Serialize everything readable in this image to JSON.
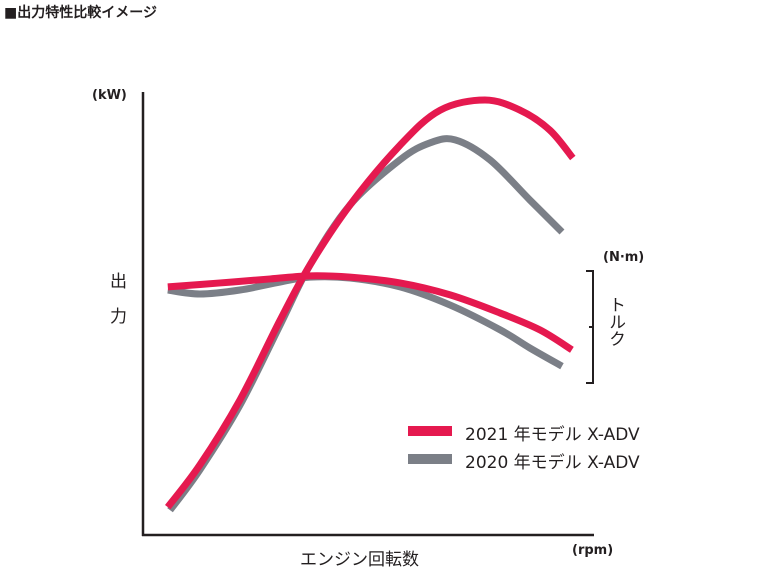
{
  "chart_data": {
    "type": "line",
    "title": "■出力特性比較イメージ",
    "xlabel": "エンジン回転数",
    "x_unit": "(rpm)",
    "ylabel_left": "出力",
    "y_unit_left": "(kW)",
    "ylabel_right": "トルク",
    "y_unit_right": "(N·m)",
    "scale_note": "no tick values printed; values are relative (0-100) positions along each axis",
    "xlim": [
      0,
      100
    ],
    "ylim": [
      0,
      100
    ],
    "grid": false,
    "legend_position": "bottom-right",
    "colors": {
      "model_2021": "#e5194f",
      "model_2020": "#7b7f87"
    },
    "series": [
      {
        "name": "2021 年モデル X-ADV",
        "quantity": "power",
        "color": "#e5194f",
        "points": [
          [
            5.5,
            6.3
          ],
          [
            12.6,
            15.8
          ],
          [
            21.5,
            30.5
          ],
          [
            30.4,
            48.5
          ],
          [
            37.0,
            60.9
          ],
          [
            45.9,
            74.5
          ],
          [
            57.0,
            88.0
          ],
          [
            65.9,
            95.9
          ],
          [
            75.8,
            98.2
          ],
          [
            83.6,
            95.9
          ],
          [
            90.2,
            91.4
          ],
          [
            95.3,
            85.1
          ]
        ]
      },
      {
        "name": "2020 年モデル X-ADV",
        "quantity": "power",
        "color": "#7b7f87",
        "points": [
          [
            6.0,
            5.6
          ],
          [
            12.6,
            14.7
          ],
          [
            21.5,
            29.3
          ],
          [
            30.4,
            47.4
          ],
          [
            37.0,
            60.9
          ],
          [
            45.9,
            74.5
          ],
          [
            57.0,
            84.7
          ],
          [
            63.6,
            88.5
          ],
          [
            69.2,
            89.2
          ],
          [
            76.9,
            84.7
          ],
          [
            85.8,
            75.6
          ],
          [
            92.9,
            68.4
          ]
        ]
      },
      {
        "name": "2021 年モデル X-ADV",
        "quantity": "torque",
        "color": "#e5194f",
        "points": [
          [
            5.5,
            56.0
          ],
          [
            17.1,
            56.9
          ],
          [
            28.2,
            57.8
          ],
          [
            37.0,
            58.5
          ],
          [
            45.9,
            58.2
          ],
          [
            57.0,
            56.9
          ],
          [
            68.1,
            54.2
          ],
          [
            79.2,
            50.1
          ],
          [
            88.0,
            46.3
          ],
          [
            95.1,
            41.8
          ]
        ]
      },
      {
        "name": "2020 年モデル X-ADV",
        "quantity": "torque",
        "color": "#7b7f87",
        "points": [
          [
            5.5,
            55.3
          ],
          [
            12.6,
            54.4
          ],
          [
            21.5,
            55.3
          ],
          [
            30.4,
            57.1
          ],
          [
            37.0,
            58.2
          ],
          [
            45.9,
            58.0
          ],
          [
            57.0,
            56.0
          ],
          [
            68.1,
            51.9
          ],
          [
            79.2,
            46.3
          ],
          [
            85.8,
            42.2
          ],
          [
            92.9,
            38.1
          ]
        ]
      }
    ],
    "legend": [
      {
        "label": "2021 年モデル X-ADV",
        "color": "#e5194f"
      },
      {
        "label": "2020 年モデル X-ADV",
        "color": "#7b7f87"
      }
    ]
  }
}
